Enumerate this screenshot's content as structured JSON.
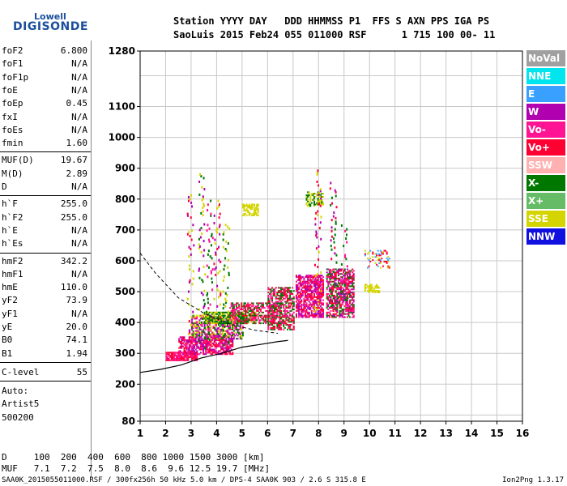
{
  "logo": {
    "top": "Lowell",
    "bottom": "DIGISONDE",
    "color": "#1a4f9c"
  },
  "header": {
    "line1": "Station YYYY DAY   DDD HHMMSS P1  FFS S AXN PPS IGA PS",
    "line2": "SaoLuis 2015 Feb24 055 011000 RSF      1 715 100 00- 11"
  },
  "params": {
    "group1": [
      {
        "k": "foF2",
        "v": "6.800"
      },
      {
        "k": "foF1",
        "v": "N/A"
      },
      {
        "k": "foF1p",
        "v": "N/A"
      },
      {
        "k": "foE",
        "v": "N/A"
      },
      {
        "k": "foEp",
        "v": "0.45"
      },
      {
        "k": "fxI",
        "v": "N/A"
      },
      {
        "k": "foEs",
        "v": "N/A"
      },
      {
        "k": "fmin",
        "v": "1.60"
      }
    ],
    "group2": [
      {
        "k": "MUF(D)",
        "v": "19.67"
      },
      {
        "k": "M(D)",
        "v": "2.89"
      },
      {
        "k": "D",
        "v": "N/A"
      }
    ],
    "group3": [
      {
        "k": "h`F",
        "v": "255.0"
      },
      {
        "k": "h`F2",
        "v": "255.0"
      },
      {
        "k": "h`E",
        "v": "N/A"
      },
      {
        "k": "h`Es",
        "v": "N/A"
      }
    ],
    "group4": [
      {
        "k": "hmF2",
        "v": "342.2"
      },
      {
        "k": "hmF1",
        "v": "N/A"
      },
      {
        "k": "hmE",
        "v": "110.0"
      },
      {
        "k": "yF2",
        "v": "73.9"
      },
      {
        "k": "yF1",
        "v": "N/A"
      },
      {
        "k": "yE",
        "v": "20.0"
      },
      {
        "k": "B0",
        "v": "74.1"
      },
      {
        "k": "B1",
        "v": "1.94"
      }
    ],
    "clevel": {
      "k": "C-level",
      "v": "55"
    },
    "auto": [
      "Auto:",
      "Artist5",
      "500200"
    ]
  },
  "legend": [
    {
      "label": "NoVal",
      "bg": "#a0a0a0",
      "fg": "#ffffff"
    },
    {
      "label": "NNE",
      "bg": "#00e5ee",
      "fg": "#ffffff"
    },
    {
      "label": "E",
      "bg": "#3aa0ff",
      "fg": "#ffffff"
    },
    {
      "label": "W",
      "bg": "#b000b0",
      "fg": "#ffffff"
    },
    {
      "label": "Vo-",
      "bg": "#ff1493",
      "fg": "#ffffff"
    },
    {
      "label": "Vo+",
      "bg": "#ff0033",
      "fg": "#ffffff"
    },
    {
      "label": "SSW",
      "bg": "#ffb0b0",
      "fg": "#ffffff"
    },
    {
      "label": "X-",
      "bg": "#007800",
      "fg": "#ffffff"
    },
    {
      "label": "X+",
      "bg": "#66bb66",
      "fg": "#ffffff"
    },
    {
      "label": "SSE",
      "bg": "#d4d400",
      "fg": "#ffffff"
    },
    {
      "label": "NNW",
      "bg": "#1010e0",
      "fg": "#ffffff"
    }
  ],
  "bottom": {
    "line1": "D     100  200  400  600  800 1000 1500 3000 [km]",
    "line2": "MUF   7.1  7.2  7.5  8.0  8.6  9.6 12.5 19.7 [MHz]"
  },
  "footer": "SAA0K_2015055011000.RSF / 300fx256h 50 kHz 5.0 km / DPS-4 SAA0K 903 / 2.6 S 315.8 E",
  "version": "Ion2Png 1.3.17",
  "chart_data": {
    "type": "scatter",
    "xlim": [
      1,
      16
    ],
    "x_ticks": [
      1,
      2,
      3,
      4,
      5,
      6,
      7,
      8,
      9,
      10,
      11,
      12,
      13,
      14,
      15,
      16
    ],
    "ylim": [
      80,
      1280
    ],
    "y_ticks": [
      80,
      200,
      300,
      400,
      500,
      600,
      700,
      800,
      900,
      1000,
      1100,
      1280
    ],
    "grid": true,
    "clusters": [
      {
        "f": [
          2.0,
          3.2
        ],
        "h": [
          280,
          310
        ],
        "colors": [
          "#ff0033",
          "#ff1493"
        ],
        "density": 0.85
      },
      {
        "f": [
          2.5,
          4.6
        ],
        "h": [
          300,
          360
        ],
        "colors": [
          "#ff0033",
          "#ff1493",
          "#b000b0"
        ],
        "density": 0.7
      },
      {
        "f": [
          3.0,
          5.0
        ],
        "h": [
          350,
          430
        ],
        "colors": [
          "#d4d400",
          "#b000b0",
          "#007800",
          "#ff1493"
        ],
        "density": 0.6
      },
      {
        "f": [
          3.5,
          5.5
        ],
        "h": [
          400,
          440
        ],
        "colors": [
          "#d4d400",
          "#007800"
        ],
        "density": 0.8
      },
      {
        "f": [
          4.5,
          6.5
        ],
        "h": [
          400,
          470
        ],
        "colors": [
          "#ff0033",
          "#ff1493",
          "#007800"
        ],
        "density": 0.55
      },
      {
        "f": [
          6.0,
          7.0
        ],
        "h": [
          380,
          520
        ],
        "colors": [
          "#ff0033",
          "#ff1493",
          "#007800"
        ],
        "density": 0.6
      },
      {
        "f": [
          7.1,
          8.2
        ],
        "h": [
          420,
          560
        ],
        "colors": [
          "#ff0033",
          "#ff1493",
          "#b000b0"
        ],
        "density": 0.7
      },
      {
        "f": [
          8.3,
          9.4
        ],
        "h": [
          420,
          580
        ],
        "colors": [
          "#ff0033",
          "#ff1493",
          "#b000b0",
          "#007800"
        ],
        "density": 0.65
      },
      {
        "f": [
          9.8,
          10.4
        ],
        "h": [
          500,
          530
        ],
        "colors": [
          "#d4d400"
        ],
        "density": 0.6
      },
      {
        "f": [
          5.0,
          5.6
        ],
        "h": [
          750,
          790
        ],
        "colors": [
          "#d4d400"
        ],
        "density": 0.6
      },
      {
        "f": [
          7.5,
          8.2
        ],
        "h": [
          780,
          830
        ],
        "colors": [
          "#d4d400",
          "#007800"
        ],
        "density": 0.5
      },
      {
        "f": [
          9.8,
          10.8
        ],
        "h": [
          580,
          640
        ],
        "colors": [
          "#d4d400",
          "#3aa0ff",
          "#ff0033"
        ],
        "density": 0.3
      }
    ],
    "columns": [
      {
        "f": 2.95,
        "h": [
          300,
          820
        ],
        "colors": [
          "#b000b0",
          "#ff0033",
          "#d4d400"
        ]
      },
      {
        "f": 3.4,
        "h": [
          320,
          920
        ],
        "colors": [
          "#007800",
          "#b000b0",
          "#d4d400"
        ]
      },
      {
        "f": 3.7,
        "h": [
          330,
          800
        ],
        "colors": [
          "#ff1493",
          "#007800"
        ]
      },
      {
        "f": 4.0,
        "h": [
          330,
          820
        ],
        "colors": [
          "#b000b0",
          "#d4d400",
          "#ff0033"
        ]
      },
      {
        "f": 4.35,
        "h": [
          330,
          740
        ],
        "colors": [
          "#007800",
          "#d4d400"
        ]
      },
      {
        "f": 7.95,
        "h": [
          440,
          900
        ],
        "colors": [
          "#ff0033",
          "#d4d400",
          "#b000b0"
        ]
      },
      {
        "f": 8.55,
        "h": [
          430,
          860
        ],
        "colors": [
          "#b000b0",
          "#ff0033",
          "#007800"
        ]
      },
      {
        "f": 9.0,
        "h": [
          430,
          720
        ],
        "colors": [
          "#ff1493",
          "#007800"
        ]
      }
    ],
    "fitted_curve": {
      "f": [
        1.0,
        1.8,
        2.6,
        3.4,
        4.2,
        5.0,
        5.8,
        6.4,
        6.8
      ],
      "h": [
        238,
        248,
        262,
        285,
        300,
        320,
        330,
        338,
        342
      ]
    },
    "dashed_curve": {
      "f": [
        1.0,
        1.6,
        2.5,
        3.5,
        4.5,
        5.5,
        6.4
      ],
      "h": [
        625,
        560,
        480,
        430,
        395,
        375,
        365
      ]
    }
  }
}
